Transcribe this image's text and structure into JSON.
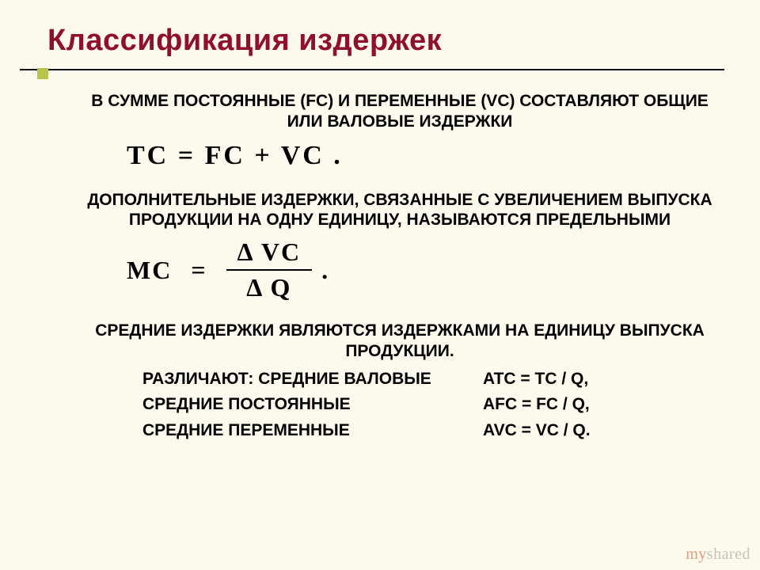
{
  "colors": {
    "background": "#fbfaec",
    "title": "#8f0f2d",
    "rule": "#111111",
    "accent_square": "#b8c34b",
    "text": "#000000"
  },
  "fonts": {
    "title_family": "Arial",
    "title_size_pt": 29,
    "body_family": "Arial",
    "body_size_pt": 16,
    "equation_family": "Times New Roman",
    "equation_size_pt": 26
  },
  "title": "Классификация издержек",
  "para1": "В СУММЕ ПОСТОЯННЫЕ (FC) И ПЕРЕМЕННЫЕ (VC) СОСТАВЛЯЮТ ОБЩИЕ ИЛИ ВАЛОВЫЕ ИЗДЕРЖКИ",
  "eq1": "TC   =   FC   +   VC .",
  "para2": "ДОПОЛНИТЕЛЬНЫЕ ИЗДЕРЖКИ, СВЯЗАННЫЕ С УВЕЛИЧЕНИЕМ ВЫПУСКА ПРОДУКЦИИ НА ОДНУ ЕДИНИЦУ, НАЗЫВАЮТСЯ ПРЕДЕЛЬНЫМИ",
  "eq2": {
    "lhs": "MC",
    "eq": "=",
    "num": "Δ VC",
    "den": "Δ Q",
    "period": "."
  },
  "para3": "СРЕДНИЕ ИЗДЕРЖКИ ЯВЛЯЮТСЯ ИЗДЕРЖКАМИ НА ЕДИНИЦУ ВЫПУСКА ПРОДУКЦИИ.",
  "averages": {
    "row1": {
      "label": "РАЗЛИЧАЮТ: СРЕДНИЕ ВАЛОВЫЕ",
      "value": "ATC = TC / Q,"
    },
    "row2": {
      "label": "СРЕДНИЕ ПОСТОЯННЫЕ",
      "value": "AFC = FC / Q,"
    },
    "row3": {
      "label": "СРЕДНИЕ ПЕРЕМЕННЫЕ",
      "value": "AVC = VC / Q."
    }
  },
  "watermark": {
    "my": "my",
    "shared": "shared"
  }
}
